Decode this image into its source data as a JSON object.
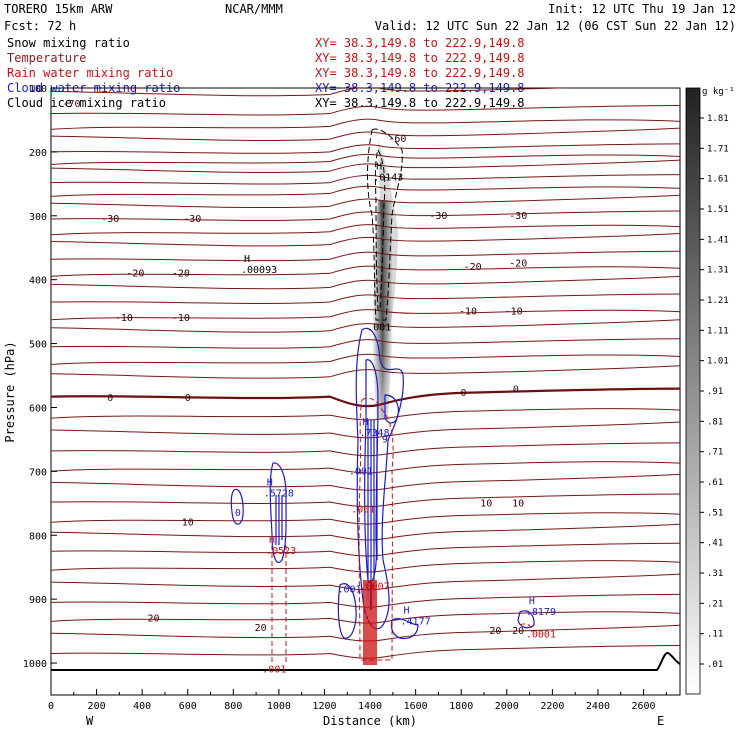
{
  "header": {
    "model": "TORERO  15km ARW",
    "org": "NCAR/MMM",
    "init": "Init: 12 UTC Thu 19 Jan 12",
    "fcst": "Fcst:   72 h",
    "valid": "Valid: 12 UTC Sun 22 Jan 12 (06 CST Sun 22 Jan 12)"
  },
  "legend": [
    {
      "label": "Snow mixing ratio",
      "xy": "XY=  38.3,149.8 to 222.9,149.8",
      "color": "#000000"
    },
    {
      "label": "Temperature",
      "xy": "XY=  38.3,149.8 to 222.9,149.8",
      "color": "#8b1a1a"
    },
    {
      "label": "Rain water mixing ratio",
      "xy": "XY=  38.3,149.8 to 222.9,149.8",
      "color": "#cc1111"
    },
    {
      "label": "Cloud water mixing ratio",
      "xy": "XY=  38.3,149.8 to 222.9,149.8",
      "color": "#1a1acc"
    },
    {
      "label": "Cloud ice mixing ratio",
      "xy": "XY=  38.3,149.8 to 222.9,149.8",
      "color": "#000000"
    }
  ],
  "colorbar": {
    "units": "g kg⁻¹",
    "labels": [
      "1.81",
      "1.71",
      "1.61",
      "1.51",
      "1.41",
      "1.31",
      "1.21",
      "1.11",
      "1.01",
      ".91",
      ".81",
      ".71",
      ".61",
      ".51",
      ".41",
      ".31",
      ".21",
      ".11",
      ".01"
    ]
  },
  "chart_data": {
    "type": "contour-cross-section",
    "xlabel": "Distance (km)",
    "ylabel": "Pressure (hPa)",
    "xlim": [
      0,
      2760
    ],
    "ylim": [
      1050,
      100
    ],
    "xticks": [
      0,
      200,
      400,
      600,
      800,
      1000,
      1200,
      1400,
      1600,
      1800,
      2000,
      2200,
      2400,
      2600
    ],
    "yticks": [
      100,
      200,
      300,
      400,
      500,
      600,
      700,
      800,
      900,
      1000
    ],
    "x_endpoints": {
      "left": "W",
      "right": "E"
    },
    "temperature_labels": [
      {
        "text": "-70",
        "x": 90,
        "p": 125
      },
      {
        "text": "-60",
        "x": 1520,
        "p": 180
      },
      {
        "text": "-30",
        "x": 260,
        "p": 305
      },
      {
        "text": "-30",
        "x": 620,
        "p": 305
      },
      {
        "text": "-30",
        "x": 1700,
        "p": 300
      },
      {
        "text": "-30",
        "x": 2050,
        "p": 300
      },
      {
        "text": "-20",
        "x": 370,
        "p": 390
      },
      {
        "text": "-20",
        "x": 570,
        "p": 390
      },
      {
        "text": "-20",
        "x": 1850,
        "p": 380
      },
      {
        "text": "-20",
        "x": 2050,
        "p": 375
      },
      {
        "text": "-10",
        "x": 320,
        "p": 460
      },
      {
        "text": "-10",
        "x": 570,
        "p": 460
      },
      {
        "text": "-10",
        "x": 1830,
        "p": 450
      },
      {
        "text": "-10",
        "x": 2030,
        "p": 450
      },
      {
        "text": "0",
        "x": 260,
        "p": 585
      },
      {
        "text": "0",
        "x": 600,
        "p": 585
      },
      {
        "text": "0",
        "x": 1810,
        "p": 577
      },
      {
        "text": "0",
        "x": 2040,
        "p": 572
      },
      {
        "text": "10",
        "x": 600,
        "p": 780
      },
      {
        "text": "10",
        "x": 1910,
        "p": 750
      },
      {
        "text": "10",
        "x": 2050,
        "p": 750
      },
      {
        "text": "20",
        "x": 450,
        "p": 930
      },
      {
        "text": "20",
        "x": 920,
        "p": 945
      },
      {
        "text": "20",
        "x": 1950,
        "p": 950
      },
      {
        "text": "20",
        "x": 2050,
        "p": 950
      }
    ],
    "max_labels": [
      {
        "mark": "H",
        "value": ".0143",
        "x": 1440,
        "p": 240,
        "series": "Cloud ice mixing ratio"
      },
      {
        "mark": "H",
        "value": ".00093",
        "x": 860,
        "p": 385,
        "series": "Snow mixing ratio"
      },
      {
        "mark": "H",
        "value": ".5728",
        "x": 960,
        "p": 735,
        "series": "Cloud water mixing ratio"
      },
      {
        "mark": "H",
        "value": ".0523",
        "x": 970,
        "p": 825,
        "series": "Rain water mixing ratio"
      },
      {
        "mark": "H",
        "value": ".7348",
        "x": 1380,
        "p": 640,
        "series": "Cloud water mixing ratio"
      },
      {
        "mark": "H",
        "value": ".4177",
        "x": 1560,
        "p": 935,
        "series": "Cloud water mixing ratio"
      },
      {
        "mark": "H",
        "value": ".8179",
        "x": 2110,
        "p": 920,
        "series": "Cloud water mixing ratio"
      },
      {
        "mark": "",
        "value": ".0001",
        "x": 2110,
        "p": 955,
        "series": "Rain water mixing ratio"
      }
    ],
    "contour_labels": [
      {
        "text": ".001",
        "x": 1440,
        "p": 475,
        "color": "#000000"
      },
      {
        "text": ".001",
        "x": 1310,
        "p": 885,
        "color": "#1a1acc"
      },
      {
        "text": ".001",
        "x": 980,
        "p": 1010,
        "color": "#cc1111"
      },
      {
        "text": ".001",
        "x": 1360,
        "p": 700,
        "color": "#1a1acc"
      },
      {
        "text": ".001",
        "x": 1370,
        "p": 760,
        "color": "#cc1111"
      },
      {
        "text": ".0007",
        "x": 1420,
        "p": 880,
        "color": "#cc1111"
      },
      {
        "text": "0",
        "x": 820,
        "p": 765,
        "color": "#1a1acc"
      },
      {
        "text": "9",
        "x": 1465,
        "p": 650,
        "color": "#1a1acc"
      }
    ]
  }
}
